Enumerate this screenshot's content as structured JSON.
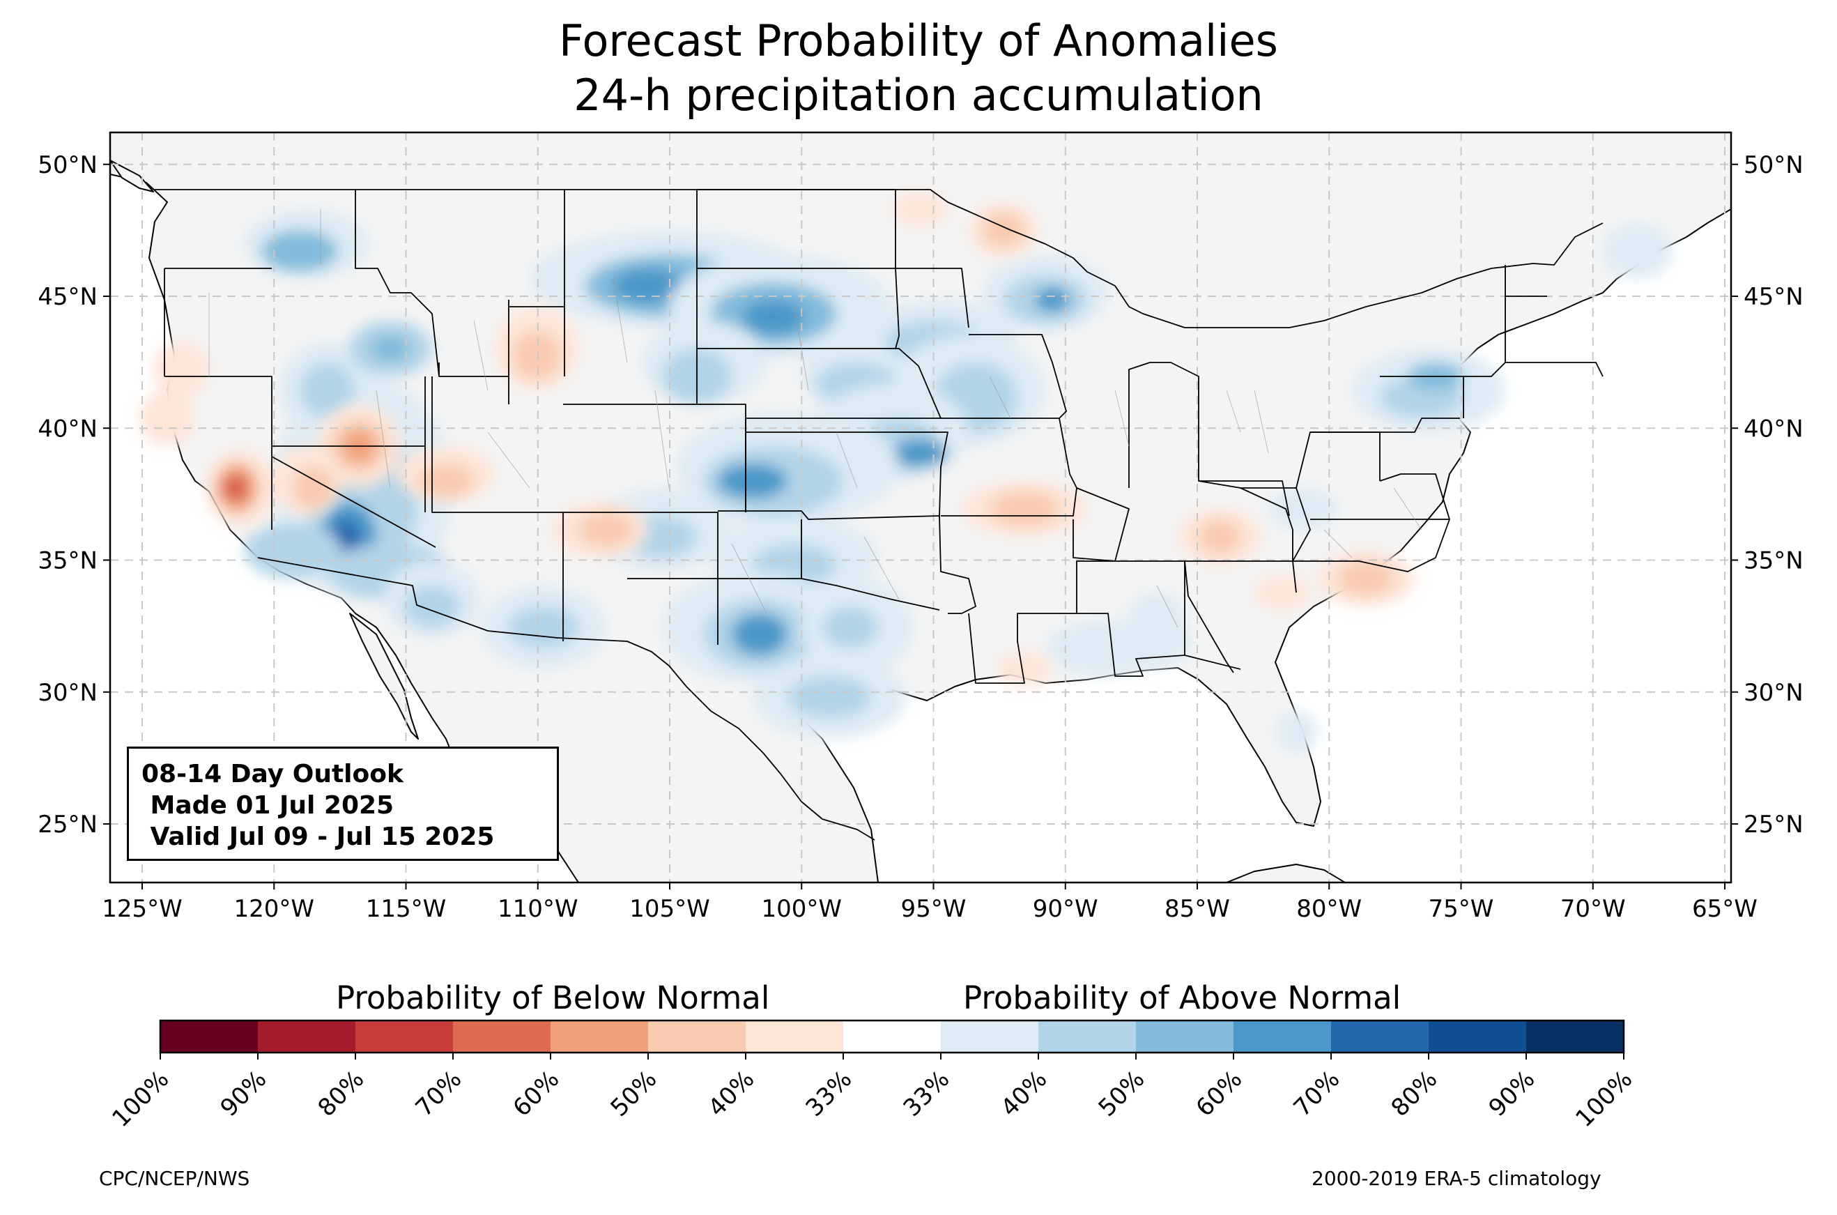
{
  "title_line1": "Forecast Probability of Anomalies",
  "title_line2": "24-h precipitation accumulation",
  "info_box": {
    "line1": "08-14 Day Outlook",
    "line2": " Made 01 Jul 2025",
    "line3": " Valid Jul 09 - Jul 15 2025"
  },
  "lat_labels": [
    "50°N",
    "45°N",
    "40°N",
    "35°N",
    "30°N",
    "25°N"
  ],
  "lon_labels": [
    "125°W",
    "120°W",
    "115°W",
    "110°W",
    "105°W",
    "100°W",
    "95°W",
    "90°W",
    "85°W",
    "80°W",
    "75°W",
    "70°W",
    "65°W"
  ],
  "colorbar": {
    "below_label": "Probability of Below Normal",
    "above_label": "Probability of Above Normal",
    "tick_labels": [
      "100%",
      "90%",
      "80%",
      "70%",
      "60%",
      "50%",
      "40%",
      "33%",
      "33%",
      "40%",
      "50%",
      "60%",
      "70%",
      "80%",
      "90%",
      "100%"
    ],
    "colors": [
      "#67001f",
      "#a51c2c",
      "#c83c3c",
      "#dd6b52",
      "#f0a07a",
      "#f9cbb0",
      "#fde5d8",
      "#ffffff",
      "#deebf4",
      "#b2d4e8",
      "#82bbdb",
      "#4a97c9",
      "#2266ac",
      "#104e94",
      "#083062"
    ]
  },
  "footer_left": "CPC/NCEP/NWS",
  "footer_right": "2000-2019 ERA-5 climatology",
  "colors": {
    "land": "#f4f4f4",
    "above": [
      "#deebf4",
      "#b2d4e8",
      "#82bbdb",
      "#4a97c9",
      "#2266ac"
    ],
    "below": [
      "#fde5d8",
      "#f9cbb0",
      "#f0a07a",
      "#dd6b52",
      "#c83c3c"
    ]
  }
}
